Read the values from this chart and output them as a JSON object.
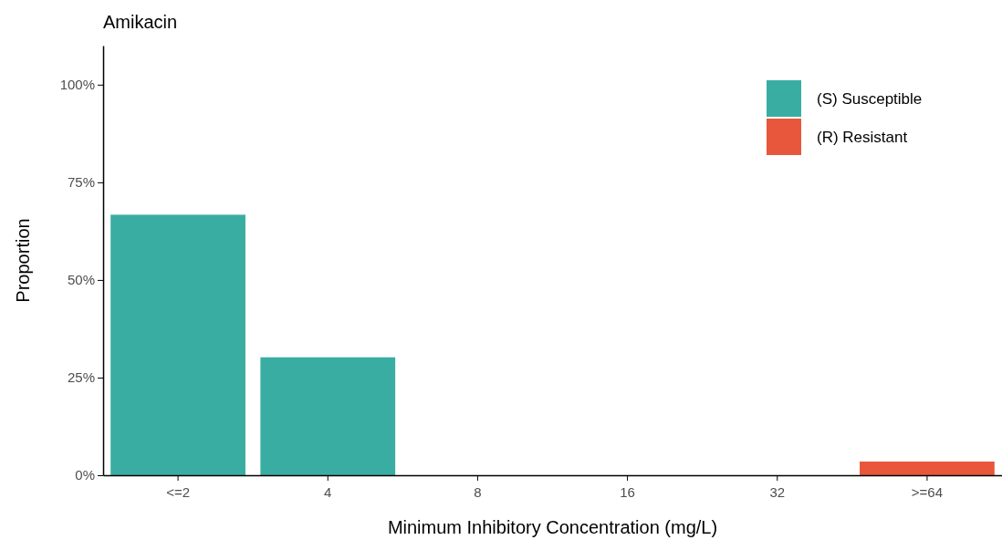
{
  "chart_data": {
    "type": "bar",
    "title": "Amikacin",
    "xlabel": "Minimum Inhibitory Concentration (mg/L)",
    "ylabel": "Proportion",
    "categories": [
      "<=2",
      "4",
      "8",
      "16",
      "32",
      ">=64"
    ],
    "series": [
      {
        "name": "(S) Susceptible",
        "color": "#3aada3",
        "values": [
          66.7,
          30.2,
          null,
          null,
          null,
          null
        ]
      },
      {
        "name": "(R) Resistant",
        "color": "#e8573b",
        "values": [
          null,
          null,
          null,
          null,
          null,
          3.5
        ]
      }
    ],
    "ylim": [
      0,
      110
    ],
    "yticks": [
      {
        "value": 0,
        "label": "0%"
      },
      {
        "value": 25,
        "label": "25%"
      },
      {
        "value": 50,
        "label": "50%"
      },
      {
        "value": 75,
        "label": "75%"
      },
      {
        "value": 100,
        "label": "100%"
      }
    ],
    "legend": "top right"
  }
}
